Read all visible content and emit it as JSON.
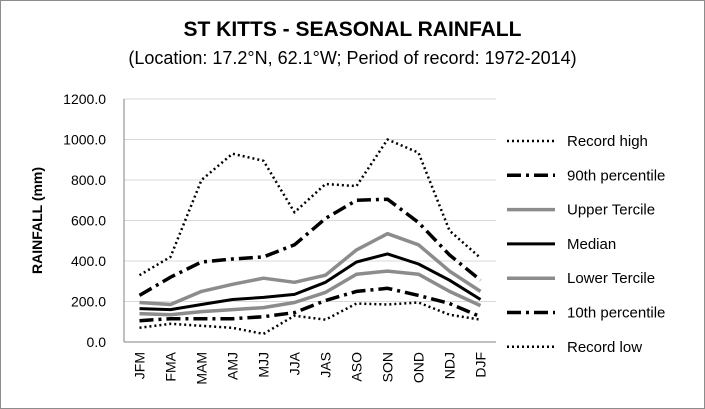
{
  "chart_data": {
    "type": "line",
    "title": "ST KITTS - SEASONAL RAINFALL",
    "subtitle": "(Location: 17.2°N, 62.1°W; Period of record: 1972-2014)",
    "ylabel": "RAINFALL (mm)",
    "xlabel": "",
    "ylim": [
      0,
      1200
    ],
    "yticks": [
      "0.0",
      "200.0",
      "400.0",
      "600.0",
      "800.0",
      "1000.0",
      "1200.0"
    ],
    "categories": [
      "JFM",
      "FMA",
      "MAM",
      "AMJ",
      "MJJ",
      "JJA",
      "JAS",
      "ASO",
      "SON",
      "OND",
      "NDJ",
      "DJF"
    ],
    "grid": "horizontal",
    "legend_position": "right",
    "series": [
      {
        "name": "Record high",
        "style": "dotted",
        "color": "#000000",
        "width": 2.5,
        "values": [
          330,
          420,
          800,
          930,
          895,
          640,
          780,
          770,
          1000,
          935,
          550,
          415
        ]
      },
      {
        "name": "90th percentile",
        "style": "dashdot",
        "color": "#000000",
        "width": 3.5,
        "values": [
          230,
          320,
          395,
          410,
          420,
          480,
          610,
          700,
          705,
          590,
          430,
          305
        ]
      },
      {
        "name": "Upper Tercile",
        "style": "solid",
        "color": "#8c8c8c",
        "width": 3.5,
        "values": [
          195,
          185,
          250,
          285,
          315,
          295,
          330,
          455,
          535,
          480,
          350,
          250
        ]
      },
      {
        "name": "Median",
        "style": "solid",
        "color": "#000000",
        "width": 3,
        "values": [
          165,
          160,
          185,
          210,
          220,
          235,
          295,
          395,
          435,
          385,
          305,
          210
        ]
      },
      {
        "name": "Lower Tercile",
        "style": "solid",
        "color": "#8c8c8c",
        "width": 3.5,
        "values": [
          140,
          135,
          150,
          160,
          170,
          195,
          245,
          335,
          350,
          335,
          250,
          180
        ]
      },
      {
        "name": "10th percentile",
        "style": "dashdot",
        "color": "#000000",
        "width": 3.5,
        "values": [
          105,
          115,
          115,
          115,
          125,
          145,
          205,
          250,
          265,
          230,
          190,
          125
        ]
      },
      {
        "name": "Record low",
        "style": "dotted",
        "color": "#000000",
        "width": 2.5,
        "values": [
          70,
          90,
          80,
          70,
          40,
          130,
          110,
          190,
          185,
          195,
          135,
          110
        ]
      }
    ]
  }
}
